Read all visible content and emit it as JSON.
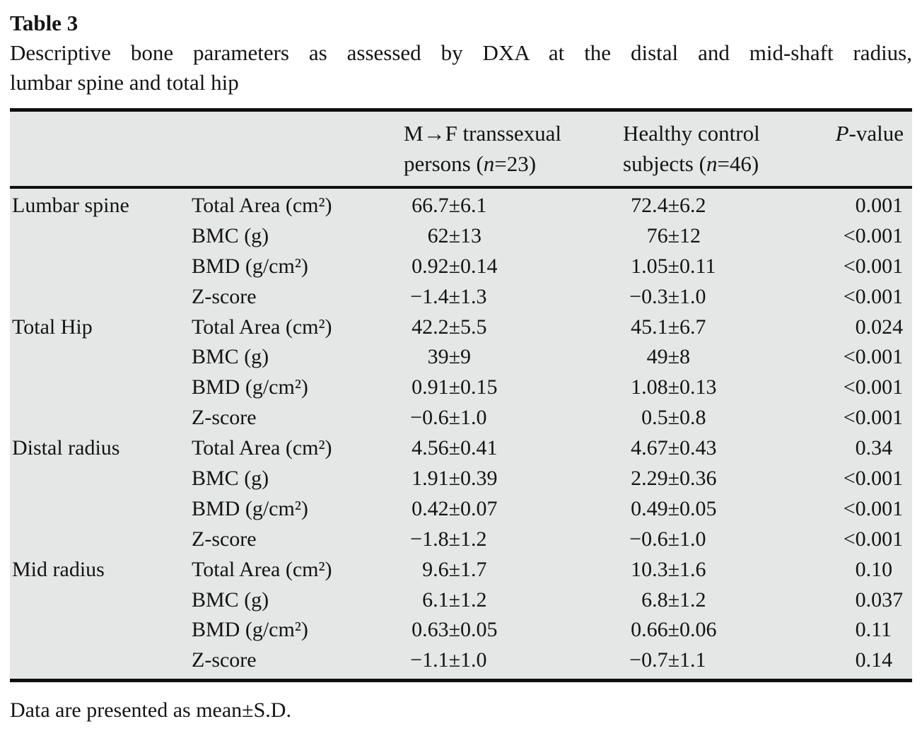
{
  "title": "Table 3",
  "caption": {
    "line1": "Descriptive bone parameters as assessed by DXA at the distal and mid-shaft radius,",
    "line2": "lumbar spine and total hip"
  },
  "header": {
    "col3_line1": "M→F transsexual",
    "col3_line2": "persons (*n*=23)",
    "col4_line1": "Healthy control",
    "col4_line2": "subjects (*n*=46)",
    "col5": "*P*-value"
  },
  "rows": [
    {
      "group": "Lumbar spine",
      "param": "Total Area (cm²)",
      "v1m": "66.7",
      "v1s": "±6.1",
      "v2m": "72.4",
      "v2s": "±6.2",
      "pi": "0",
      "pf": ".001"
    },
    {
      "group": "",
      "param": "BMC (g)",
      "v1m": "62",
      "v1s": "±13",
      "v2m": "76",
      "v2s": "±12",
      "pi": "<0",
      "pf": ".001"
    },
    {
      "group": "",
      "param": "BMD (g/cm²)",
      "v1m": "0.92",
      "v1s": "±0.14",
      "v2m": "1.05",
      "v2s": "±0.11",
      "pi": "<0",
      "pf": ".001"
    },
    {
      "group": "",
      "param": "Z-score",
      "v1m": "−1.4",
      "v1s": "±1.3",
      "v2m": "−0.3",
      "v2s": "±1.0",
      "pi": "<0",
      "pf": ".001"
    },
    {
      "group": "Total Hip",
      "param": "Total Area (cm²)",
      "v1m": "42.2",
      "v1s": "±5.5",
      "v2m": "45.1",
      "v2s": "±6.7",
      "pi": "0",
      "pf": ".024"
    },
    {
      "group": "",
      "param": "BMC (g)",
      "v1m": "39",
      "v1s": "±9",
      "v2m": "49",
      "v2s": "±8",
      "pi": "<0",
      "pf": ".001"
    },
    {
      "group": "",
      "param": "BMD (g/cm²)",
      "v1m": "0.91",
      "v1s": "±0.15",
      "v2m": "1.08",
      "v2s": "±0.13",
      "pi": "<0",
      "pf": ".001"
    },
    {
      "group": "",
      "param": "Z-score",
      "v1m": "−0.6",
      "v1s": "±1.0",
      "v2m": "0.5",
      "v2s": "±0.8",
      "pi": "<0",
      "pf": ".001"
    },
    {
      "group": "Distal radius",
      "param": "Total Area (cm²)",
      "v1m": "4.56",
      "v1s": "±0.41",
      "v2m": "4.67",
      "v2s": "±0.43",
      "pi": "0",
      "pf": ".34"
    },
    {
      "group": "",
      "param": "BMC (g)",
      "v1m": "1.91",
      "v1s": "±0.39",
      "v2m": "2.29",
      "v2s": "±0.36",
      "pi": "<0",
      "pf": ".001"
    },
    {
      "group": "",
      "param": "BMD (g/cm²)",
      "v1m": "0.42",
      "v1s": "±0.07",
      "v2m": "0.49",
      "v2s": "±0.05",
      "pi": "<0",
      "pf": ".001"
    },
    {
      "group": "",
      "param": "Z-score",
      "v1m": "−1.8",
      "v1s": "±1.2",
      "v2m": "−0.6",
      "v2s": "±1.0",
      "pi": "<0",
      "pf": ".001"
    },
    {
      "group": "Mid radius",
      "param": "Total Area (cm²)",
      "v1m": "9.6",
      "v1s": "±1.7",
      "v2m": "10.3",
      "v2s": "±1.6",
      "pi": "0",
      "pf": ".10"
    },
    {
      "group": "",
      "param": "BMC (g)",
      "v1m": "6.1",
      "v1s": "±1.2",
      "v2m": "6.8",
      "v2s": "±1.2",
      "pi": "0",
      "pf": ".037"
    },
    {
      "group": "",
      "param": "BMD (g/cm²)",
      "v1m": "0.63",
      "v1s": "±0.05",
      "v2m": "0.66",
      "v2s": "±0.06",
      "pi": "0",
      "pf": ".11"
    },
    {
      "group": "",
      "param": "Z-score",
      "v1m": "−1.1",
      "v1s": "±1.0",
      "v2m": "−0.7",
      "v2s": "±1.1",
      "pi": "0",
      "pf": ".14"
    }
  ],
  "footnote": "Data are presented as mean±S.D.",
  "colors": {
    "table_background": "#e5e6e6",
    "rule": "#0f0f0f",
    "text": "#141414"
  }
}
